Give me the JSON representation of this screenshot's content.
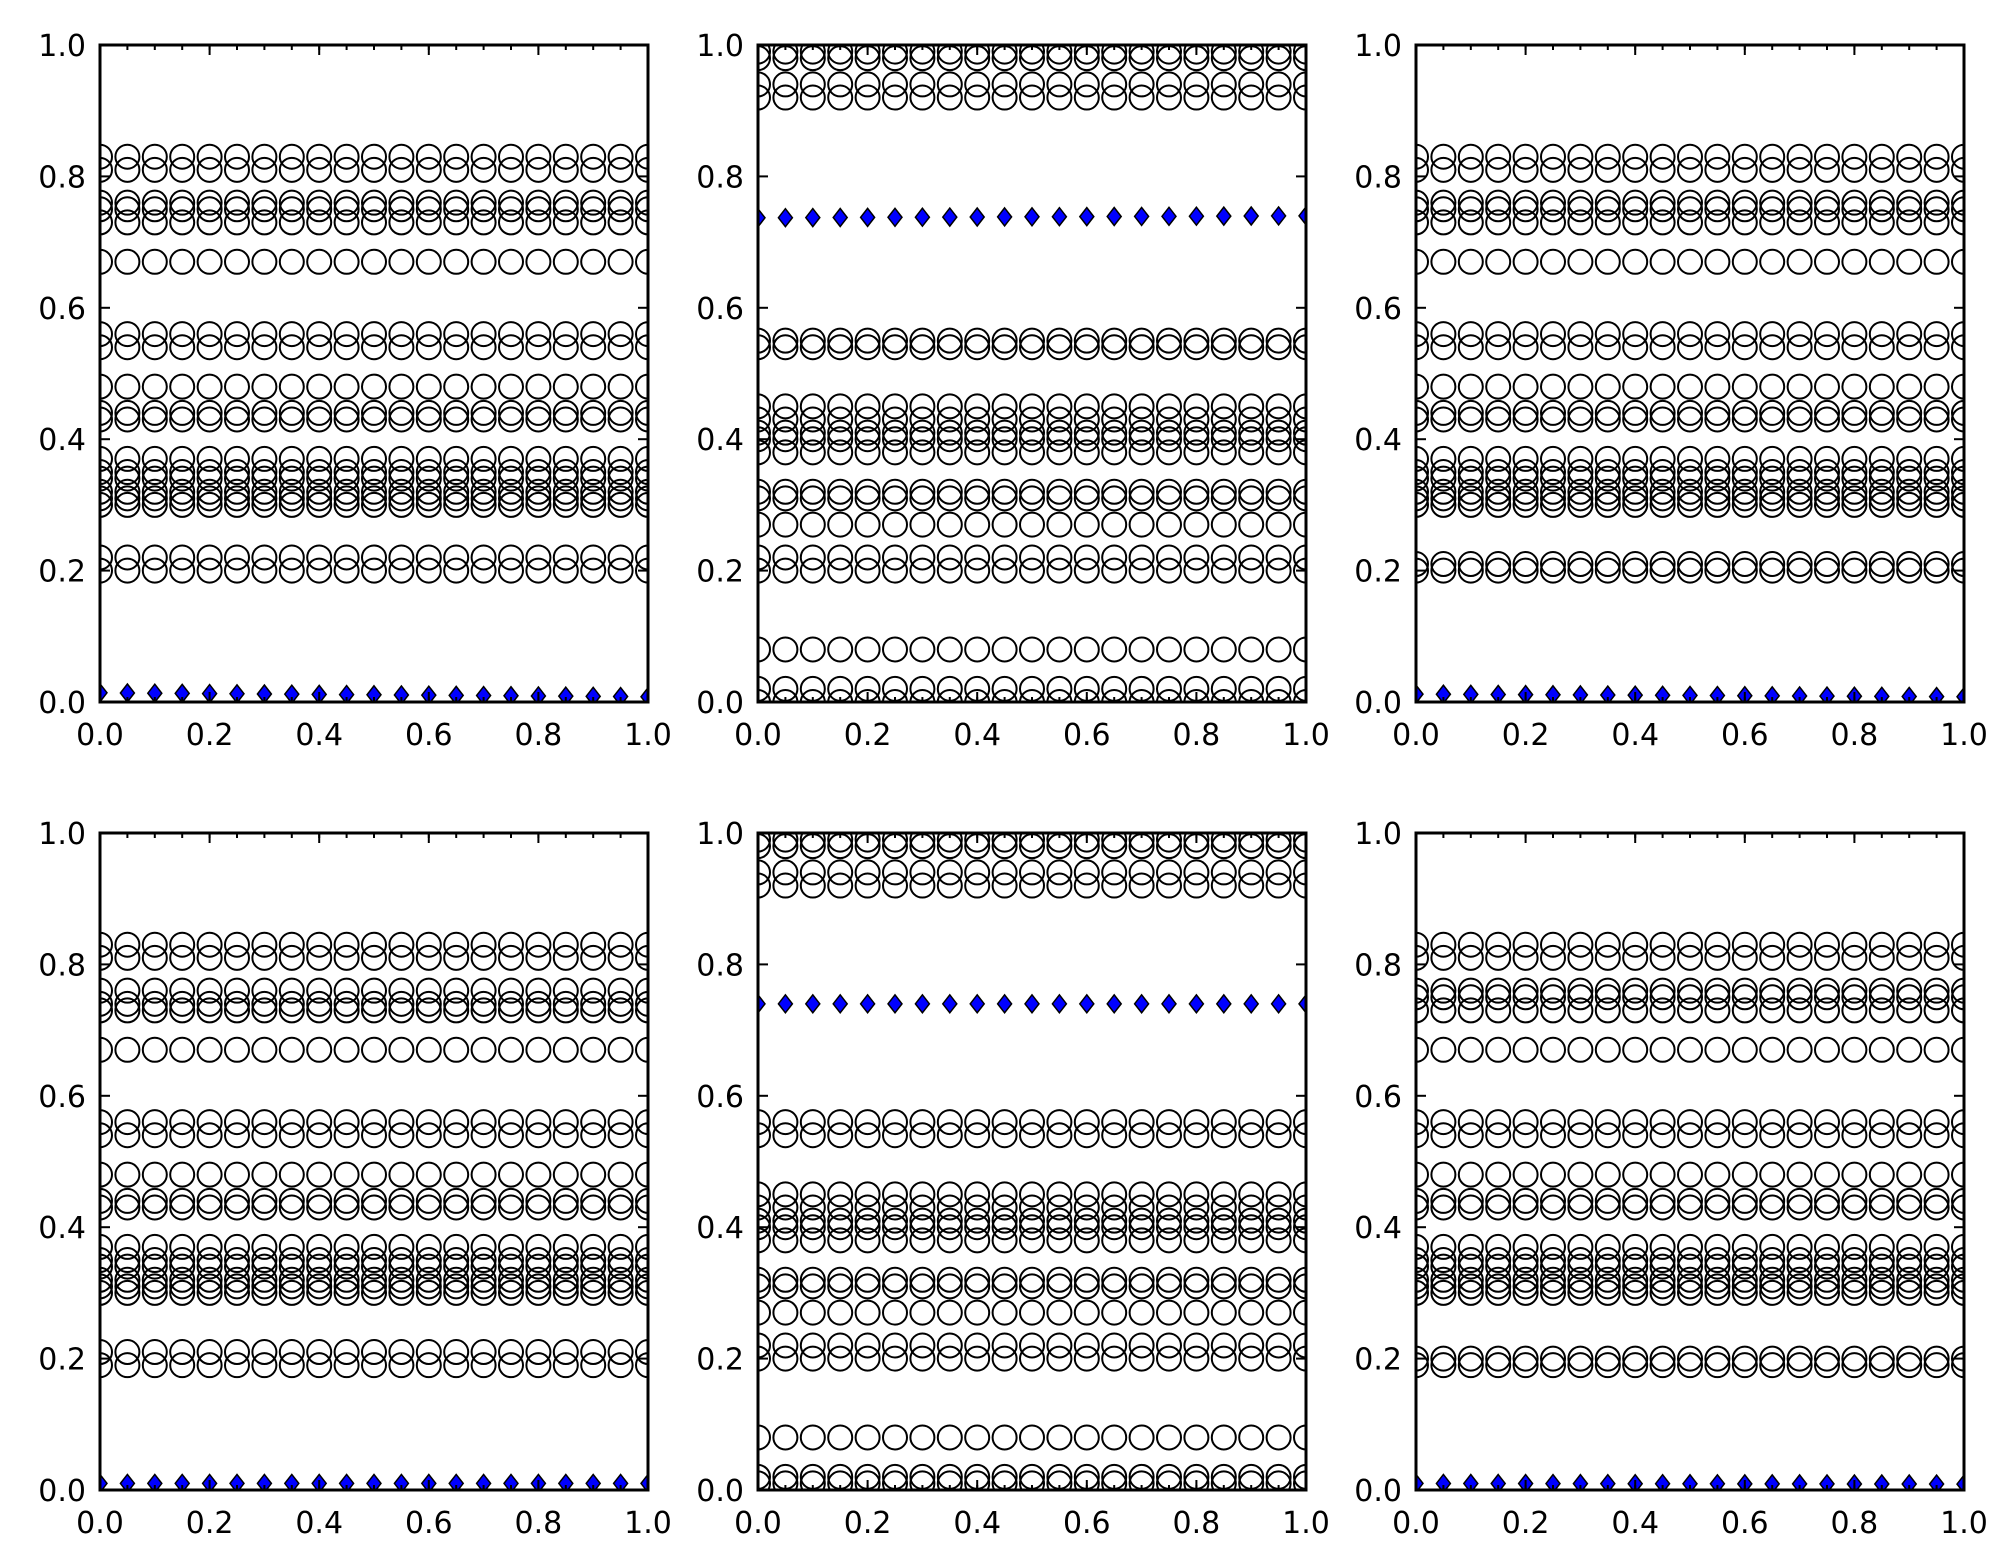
{
  "chart_data": [
    {
      "type": "scatter",
      "panel": "top-left",
      "xlim": [
        0.0,
        1.0
      ],
      "ylim": [
        0.0,
        1.0
      ],
      "x_ticks": [
        "0.0",
        "0.2",
        "0.4",
        "0.6",
        "0.8",
        "1.0"
      ],
      "y_ticks": [
        "0.0",
        "0.2",
        "0.4",
        "0.6",
        "0.8",
        "1.0"
      ],
      "grid": false,
      "x": [
        0.0,
        0.05,
        0.1,
        0.15,
        0.2,
        0.25,
        0.3,
        0.35,
        0.4,
        0.45,
        0.5,
        0.55,
        0.6,
        0.65,
        0.7,
        0.75,
        0.8,
        0.85,
        0.9,
        0.95,
        1.0
      ],
      "series": [
        {
          "marker": "circle-open",
          "color": "#000000",
          "y_levels": [
            0.2,
            0.22,
            0.3,
            0.31,
            0.32,
            0.34,
            0.35,
            0.37,
            0.43,
            0.44,
            0.48,
            0.54,
            0.56,
            0.67,
            0.73,
            0.75,
            0.76,
            0.81,
            0.83
          ]
        },
        {
          "marker": "diamond",
          "color": "#0000ff",
          "y_start": 0.014,
          "y_end": 0.008
        }
      ]
    },
    {
      "type": "scatter",
      "panel": "top-middle",
      "xlim": [
        0.0,
        1.0
      ],
      "ylim": [
        0.0,
        1.0
      ],
      "x_ticks": [
        "0.0",
        "0.2",
        "0.4",
        "0.6",
        "0.8",
        "1.0"
      ],
      "y_ticks": [
        "0.0",
        "0.2",
        "0.4",
        "0.6",
        "0.8",
        "1.0"
      ],
      "grid": false,
      "x": [
        0.0,
        0.05,
        0.1,
        0.15,
        0.2,
        0.25,
        0.3,
        0.35,
        0.4,
        0.45,
        0.5,
        0.55,
        0.6,
        0.65,
        0.7,
        0.75,
        0.8,
        0.85,
        0.9,
        0.95,
        1.0
      ],
      "series": [
        {
          "marker": "circle-open",
          "color": "#000000",
          "y_levels": [
            0.0,
            0.02,
            0.08,
            0.2,
            0.22,
            0.27,
            0.31,
            0.32,
            0.38,
            0.4,
            0.41,
            0.43,
            0.45,
            0.54,
            0.55,
            0.92,
            0.94,
            0.98,
            0.99
          ]
        },
        {
          "marker": "diamond",
          "color": "#0000ff",
          "y_start": 0.737,
          "y_end": 0.74
        }
      ]
    },
    {
      "type": "scatter",
      "panel": "top-right",
      "xlim": [
        0.0,
        1.0
      ],
      "ylim": [
        0.0,
        1.0
      ],
      "x_ticks": [
        "0.0",
        "0.2",
        "0.4",
        "0.6",
        "0.8",
        "1.0"
      ],
      "y_ticks": [
        "0.0",
        "0.2",
        "0.4",
        "0.6",
        "0.8",
        "1.0"
      ],
      "grid": false,
      "x": [
        0.0,
        0.05,
        0.1,
        0.15,
        0.2,
        0.25,
        0.3,
        0.35,
        0.4,
        0.45,
        0.5,
        0.55,
        0.6,
        0.65,
        0.7,
        0.75,
        0.8,
        0.85,
        0.9,
        0.95,
        1.0
      ],
      "series": [
        {
          "marker": "circle-open",
          "color": "#000000",
          "y_levels": [
            0.2,
            0.21,
            0.3,
            0.31,
            0.32,
            0.34,
            0.35,
            0.37,
            0.43,
            0.44,
            0.48,
            0.54,
            0.56,
            0.67,
            0.73,
            0.75,
            0.76,
            0.81,
            0.83
          ]
        },
        {
          "marker": "diamond",
          "color": "#0000ff",
          "y_start": 0.012,
          "y_end": 0.008
        }
      ]
    },
    {
      "type": "scatter",
      "panel": "bottom-left",
      "xlim": [
        0.0,
        1.0
      ],
      "ylim": [
        0.0,
        1.0
      ],
      "x_ticks": [
        "0.0",
        "0.2",
        "0.4",
        "0.6",
        "0.8",
        "1.0"
      ],
      "y_ticks": [
        "0.0",
        "0.2",
        "0.4",
        "0.6",
        "0.8",
        "1.0"
      ],
      "grid": false,
      "x": [
        0.0,
        0.05,
        0.1,
        0.15,
        0.2,
        0.25,
        0.3,
        0.35,
        0.4,
        0.45,
        0.5,
        0.55,
        0.6,
        0.65,
        0.7,
        0.75,
        0.8,
        0.85,
        0.9,
        0.95,
        1.0
      ],
      "series": [
        {
          "marker": "circle-open",
          "color": "#000000",
          "y_levels": [
            0.19,
            0.21,
            0.3,
            0.31,
            0.32,
            0.34,
            0.35,
            0.37,
            0.43,
            0.44,
            0.48,
            0.54,
            0.56,
            0.67,
            0.73,
            0.74,
            0.76,
            0.81,
            0.83
          ]
        },
        {
          "marker": "diamond",
          "color": "#0000ff",
          "y_start": 0.01,
          "y_end": 0.01
        }
      ]
    },
    {
      "type": "scatter",
      "panel": "bottom-middle",
      "xlim": [
        0.0,
        1.0
      ],
      "ylim": [
        0.0,
        1.0
      ],
      "x_ticks": [
        "0.0",
        "0.2",
        "0.4",
        "0.6",
        "0.8",
        "1.0"
      ],
      "y_ticks": [
        "0.0",
        "0.2",
        "0.4",
        "0.6",
        "0.8",
        "1.0"
      ],
      "grid": false,
      "x": [
        0.0,
        0.05,
        0.1,
        0.15,
        0.2,
        0.25,
        0.3,
        0.35,
        0.4,
        0.45,
        0.5,
        0.55,
        0.6,
        0.65,
        0.7,
        0.75,
        0.8,
        0.85,
        0.9,
        0.95,
        1.0
      ],
      "series": [
        {
          "marker": "circle-open",
          "color": "#000000",
          "y_levels": [
            0.01,
            0.02,
            0.08,
            0.2,
            0.22,
            0.27,
            0.31,
            0.32,
            0.38,
            0.4,
            0.41,
            0.43,
            0.45,
            0.54,
            0.56,
            0.92,
            0.94,
            0.98,
            0.99
          ]
        },
        {
          "marker": "diamond",
          "color": "#0000ff",
          "y_start": 0.74,
          "y_end": 0.74
        }
      ]
    },
    {
      "type": "scatter",
      "panel": "bottom-right",
      "xlim": [
        0.0,
        1.0
      ],
      "ylim": [
        0.0,
        1.0
      ],
      "x_ticks": [
        "0.0",
        "0.2",
        "0.4",
        "0.6",
        "0.8",
        "1.0"
      ],
      "y_ticks": [
        "0.0",
        "0.2",
        "0.4",
        "0.6",
        "0.8",
        "1.0"
      ],
      "grid": false,
      "x": [
        0.0,
        0.05,
        0.1,
        0.15,
        0.2,
        0.25,
        0.3,
        0.35,
        0.4,
        0.45,
        0.5,
        0.55,
        0.6,
        0.65,
        0.7,
        0.75,
        0.8,
        0.85,
        0.9,
        0.95,
        1.0
      ],
      "series": [
        {
          "marker": "circle-open",
          "color": "#000000",
          "y_levels": [
            0.19,
            0.2,
            0.3,
            0.31,
            0.32,
            0.34,
            0.35,
            0.37,
            0.43,
            0.44,
            0.48,
            0.54,
            0.56,
            0.67,
            0.73,
            0.75,
            0.76,
            0.81,
            0.83
          ]
        },
        {
          "marker": "diamond",
          "color": "#0000ff",
          "y_start": 0.01,
          "y_end": 0.009
        }
      ]
    }
  ]
}
